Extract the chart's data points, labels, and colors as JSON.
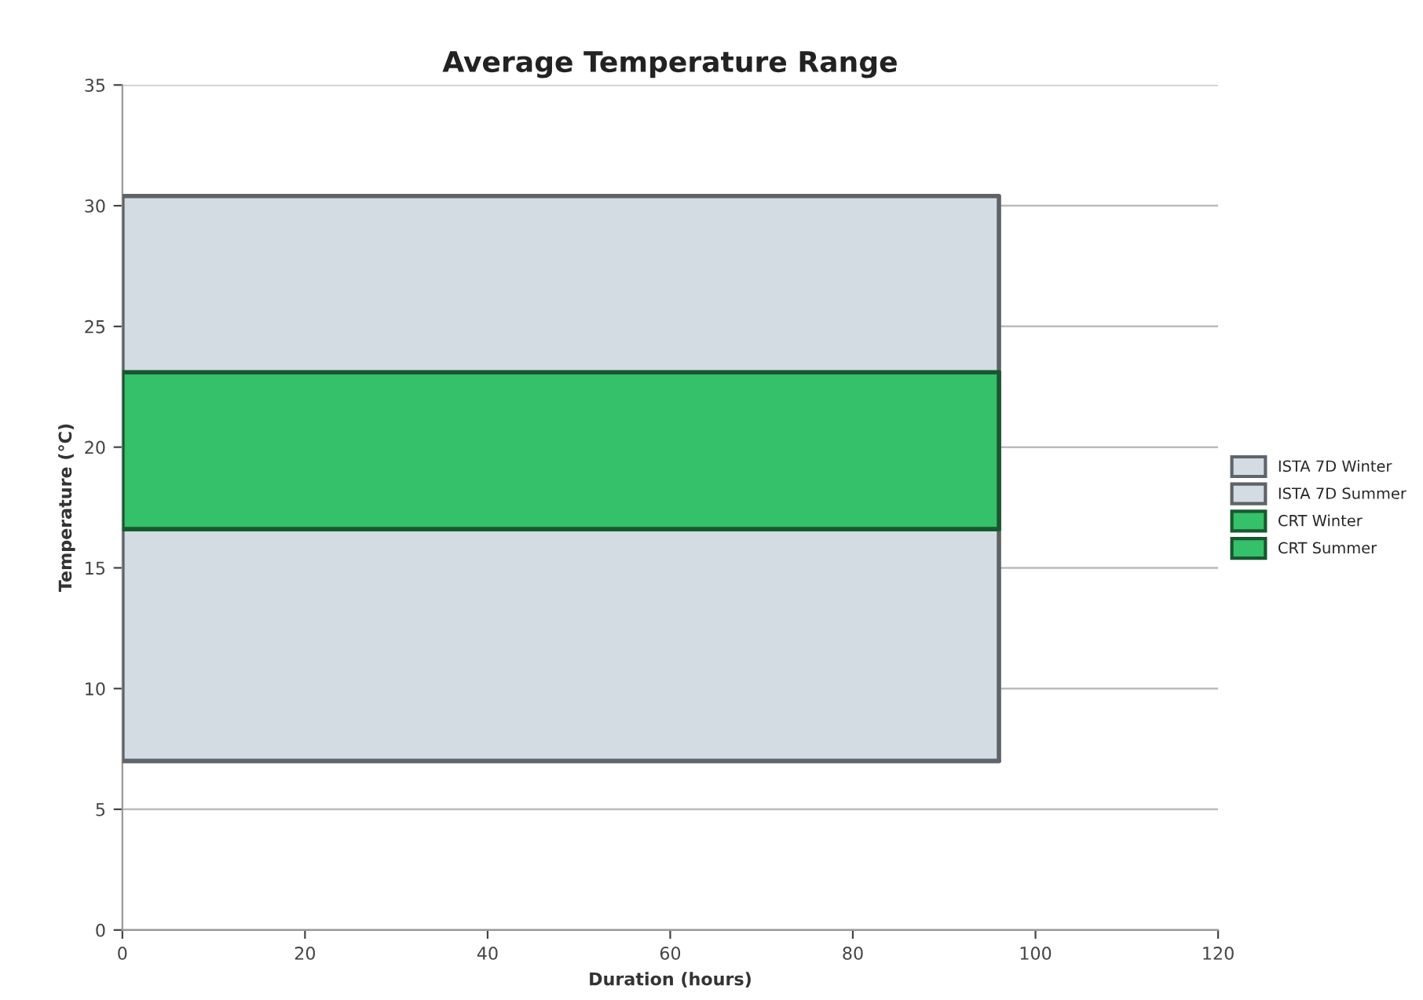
{
  "chart_data": {
    "type": "area",
    "title": "Average Temperature Range",
    "xlabel": "Duration (hours)",
    "ylabel": "Temperature (°C)",
    "x": [
      0,
      96
    ],
    "series": [
      {
        "name": "ISTA 7D Winter",
        "type": "line",
        "color": "#5f656c",
        "values": [
          7,
          7
        ]
      },
      {
        "name": "ISTA 7D Summer",
        "color": "#d3dce2",
        "values": [
          30.4,
          30.4
        ]
      },
      {
        "name": "CRT Winter",
        "type": "line",
        "color": "#175a2f",
        "values": [
          16.6,
          16.6
        ]
      },
      {
        "name": "CRT Summer",
        "color": "#35c06a",
        "values": [
          23.1,
          23.1
        ]
      }
    ],
    "xlim": [
      0,
      120
    ],
    "xticks": [
      0,
      20,
      40,
      60,
      80,
      100,
      120
    ],
    "ylim": [
      0,
      35
    ],
    "yticks": [
      0,
      5,
      10,
      15,
      20,
      25,
      30,
      35
    ],
    "grid": "y",
    "legend": "right"
  }
}
